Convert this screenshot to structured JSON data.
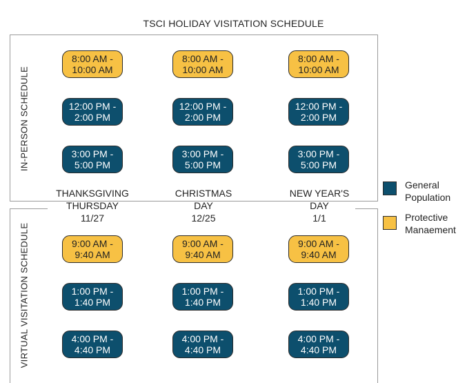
{
  "title": "TSCI HOLIDAY VISITATION SCHEDULE",
  "sections": {
    "in_person": "IN-PERSON SCHEDULE",
    "virtual": "VIRTUAL VISITATION SCHEDULE"
  },
  "days": [
    {
      "line1": "THANKSGIVING",
      "line2": "THURSDAY",
      "date": "11/27"
    },
    {
      "line1": "CHRISTMAS",
      "line2": "DAY",
      "date": "12/25"
    },
    {
      "line1": "NEW YEAR'S",
      "line2": "DAY",
      "date": "1/1"
    }
  ],
  "in_person_slots": [
    {
      "start": "8:00 AM -",
      "end": "10:00 AM",
      "group": "protective"
    },
    {
      "start": "12:00 PM -",
      "end": "2:00 PM",
      "group": "general"
    },
    {
      "start": "3:00 PM -",
      "end": "5:00 PM",
      "group": "general"
    }
  ],
  "virtual_slots": [
    {
      "start": "9:00 AM -",
      "end": "9:40 AM",
      "group": "protective"
    },
    {
      "start": "1:00 PM -",
      "end": "1:40 PM",
      "group": "general"
    },
    {
      "start": "4:00 PM -",
      "end": "4:40 PM",
      "group": "general"
    }
  ],
  "legend": {
    "general": {
      "line1": "General",
      "line2": "Population",
      "color": "#0d4f6d"
    },
    "protective": {
      "line1": "Protective",
      "line2": "Manaement",
      "color": "#f7c144"
    }
  }
}
